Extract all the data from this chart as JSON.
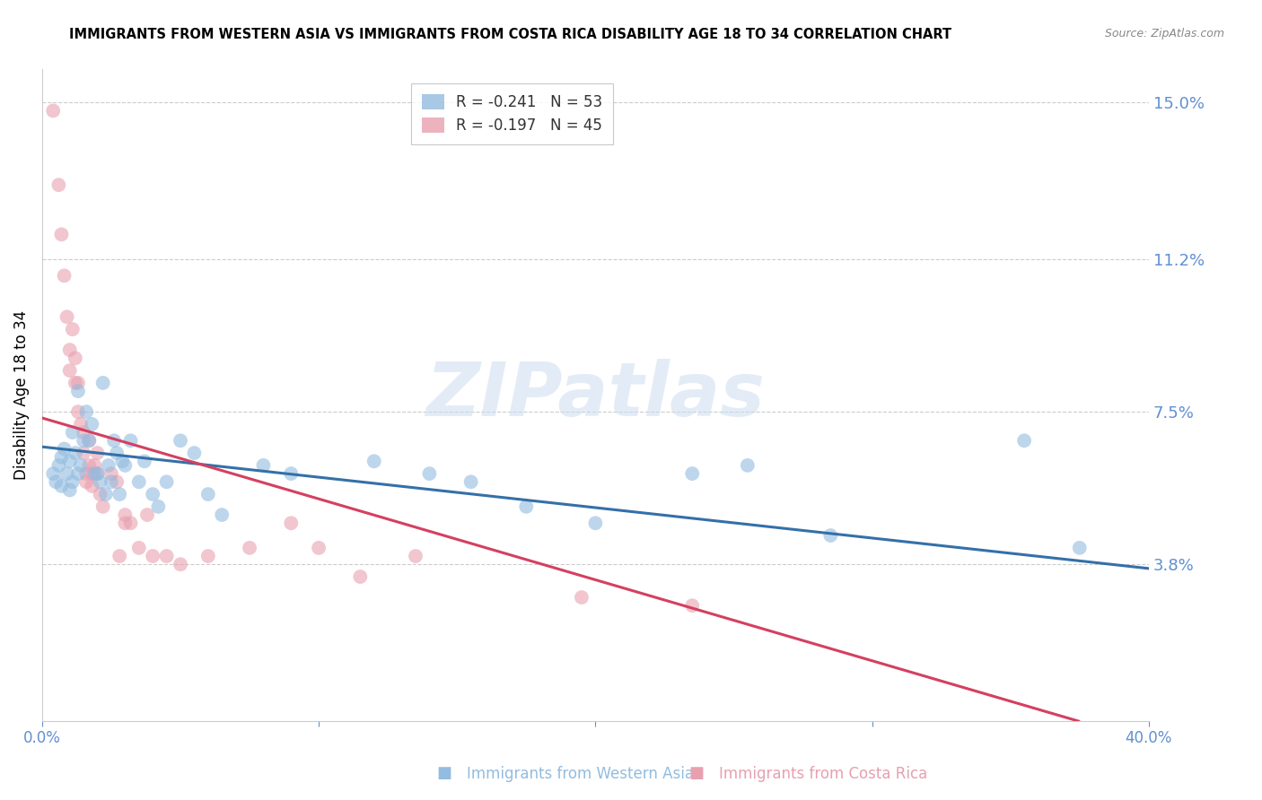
{
  "title": "IMMIGRANTS FROM WESTERN ASIA VS IMMIGRANTS FROM COSTA RICA DISABILITY AGE 18 TO 34 CORRELATION CHART",
  "source": "Source: ZipAtlas.com",
  "ylabel": "Disability Age 18 to 34",
  "xmin": 0.0,
  "xmax": 0.4,
  "ymin": 0.0,
  "ymax": 0.158,
  "yticks": [
    0.038,
    0.075,
    0.112,
    0.15
  ],
  "ytick_labels": [
    "3.8%",
    "7.5%",
    "11.2%",
    "15.0%"
  ],
  "xticks": [
    0.0,
    0.1,
    0.2,
    0.3,
    0.4
  ],
  "xtick_labels": [
    "0.0%",
    "",
    "",
    "",
    "40.0%"
  ],
  "watermark": "ZIPatlas",
  "blue_scatter": [
    [
      0.004,
      0.06
    ],
    [
      0.005,
      0.058
    ],
    [
      0.006,
      0.062
    ],
    [
      0.007,
      0.064
    ],
    [
      0.007,
      0.057
    ],
    [
      0.008,
      0.066
    ],
    [
      0.009,
      0.06
    ],
    [
      0.01,
      0.063
    ],
    [
      0.01,
      0.056
    ],
    [
      0.011,
      0.07
    ],
    [
      0.011,
      0.058
    ],
    [
      0.012,
      0.065
    ],
    [
      0.013,
      0.06
    ],
    [
      0.013,
      0.08
    ],
    [
      0.014,
      0.062
    ],
    [
      0.015,
      0.068
    ],
    [
      0.016,
      0.075
    ],
    [
      0.017,
      0.068
    ],
    [
      0.018,
      0.072
    ],
    [
      0.019,
      0.06
    ],
    [
      0.02,
      0.06
    ],
    [
      0.021,
      0.058
    ],
    [
      0.022,
      0.082
    ],
    [
      0.023,
      0.055
    ],
    [
      0.024,
      0.062
    ],
    [
      0.025,
      0.058
    ],
    [
      0.026,
      0.068
    ],
    [
      0.027,
      0.065
    ],
    [
      0.028,
      0.055
    ],
    [
      0.029,
      0.063
    ],
    [
      0.03,
      0.062
    ],
    [
      0.032,
      0.068
    ],
    [
      0.035,
      0.058
    ],
    [
      0.037,
      0.063
    ],
    [
      0.04,
      0.055
    ],
    [
      0.042,
      0.052
    ],
    [
      0.045,
      0.058
    ],
    [
      0.05,
      0.068
    ],
    [
      0.055,
      0.065
    ],
    [
      0.06,
      0.055
    ],
    [
      0.065,
      0.05
    ],
    [
      0.08,
      0.062
    ],
    [
      0.09,
      0.06
    ],
    [
      0.12,
      0.063
    ],
    [
      0.14,
      0.06
    ],
    [
      0.155,
      0.058
    ],
    [
      0.175,
      0.052
    ],
    [
      0.2,
      0.048
    ],
    [
      0.235,
      0.06
    ],
    [
      0.255,
      0.062
    ],
    [
      0.285,
      0.045
    ],
    [
      0.355,
      0.068
    ],
    [
      0.375,
      0.042
    ]
  ],
  "pink_scatter": [
    [
      0.004,
      0.148
    ],
    [
      0.006,
      0.13
    ],
    [
      0.007,
      0.118
    ],
    [
      0.008,
      0.108
    ],
    [
      0.009,
      0.098
    ],
    [
      0.01,
      0.09
    ],
    [
      0.01,
      0.085
    ],
    [
      0.011,
      0.095
    ],
    [
      0.012,
      0.082
    ],
    [
      0.012,
      0.088
    ],
    [
      0.013,
      0.082
    ],
    [
      0.013,
      0.075
    ],
    [
      0.014,
      0.072
    ],
    [
      0.015,
      0.07
    ],
    [
      0.015,
      0.065
    ],
    [
      0.016,
      0.06
    ],
    [
      0.016,
      0.058
    ],
    [
      0.017,
      0.062
    ],
    [
      0.017,
      0.068
    ],
    [
      0.018,
      0.06
    ],
    [
      0.018,
      0.057
    ],
    [
      0.019,
      0.062
    ],
    [
      0.02,
      0.065
    ],
    [
      0.02,
      0.06
    ],
    [
      0.021,
      0.055
    ],
    [
      0.022,
      0.052
    ],
    [
      0.025,
      0.06
    ],
    [
      0.027,
      0.058
    ],
    [
      0.028,
      0.04
    ],
    [
      0.03,
      0.05
    ],
    [
      0.03,
      0.048
    ],
    [
      0.032,
      0.048
    ],
    [
      0.035,
      0.042
    ],
    [
      0.038,
      0.05
    ],
    [
      0.04,
      0.04
    ],
    [
      0.045,
      0.04
    ],
    [
      0.05,
      0.038
    ],
    [
      0.06,
      0.04
    ],
    [
      0.075,
      0.042
    ],
    [
      0.09,
      0.048
    ],
    [
      0.1,
      0.042
    ],
    [
      0.115,
      0.035
    ],
    [
      0.135,
      0.04
    ],
    [
      0.195,
      0.03
    ],
    [
      0.235,
      0.028
    ]
  ],
  "blue_line_y_start": 0.0665,
  "blue_line_y_end": 0.037,
  "pink_line_y_start": 0.0735,
  "pink_line_y_end": -0.005,
  "blue_color": "#92bce0",
  "pink_color": "#e8a0b0",
  "blue_line_color": "#3470a8",
  "pink_line_color": "#d44060",
  "grid_color": "#cccccc",
  "tick_color": "#6090d0",
  "legend_R_color": "#d04040",
  "legend_N_color": "#2060b0",
  "background_color": "#ffffff"
}
